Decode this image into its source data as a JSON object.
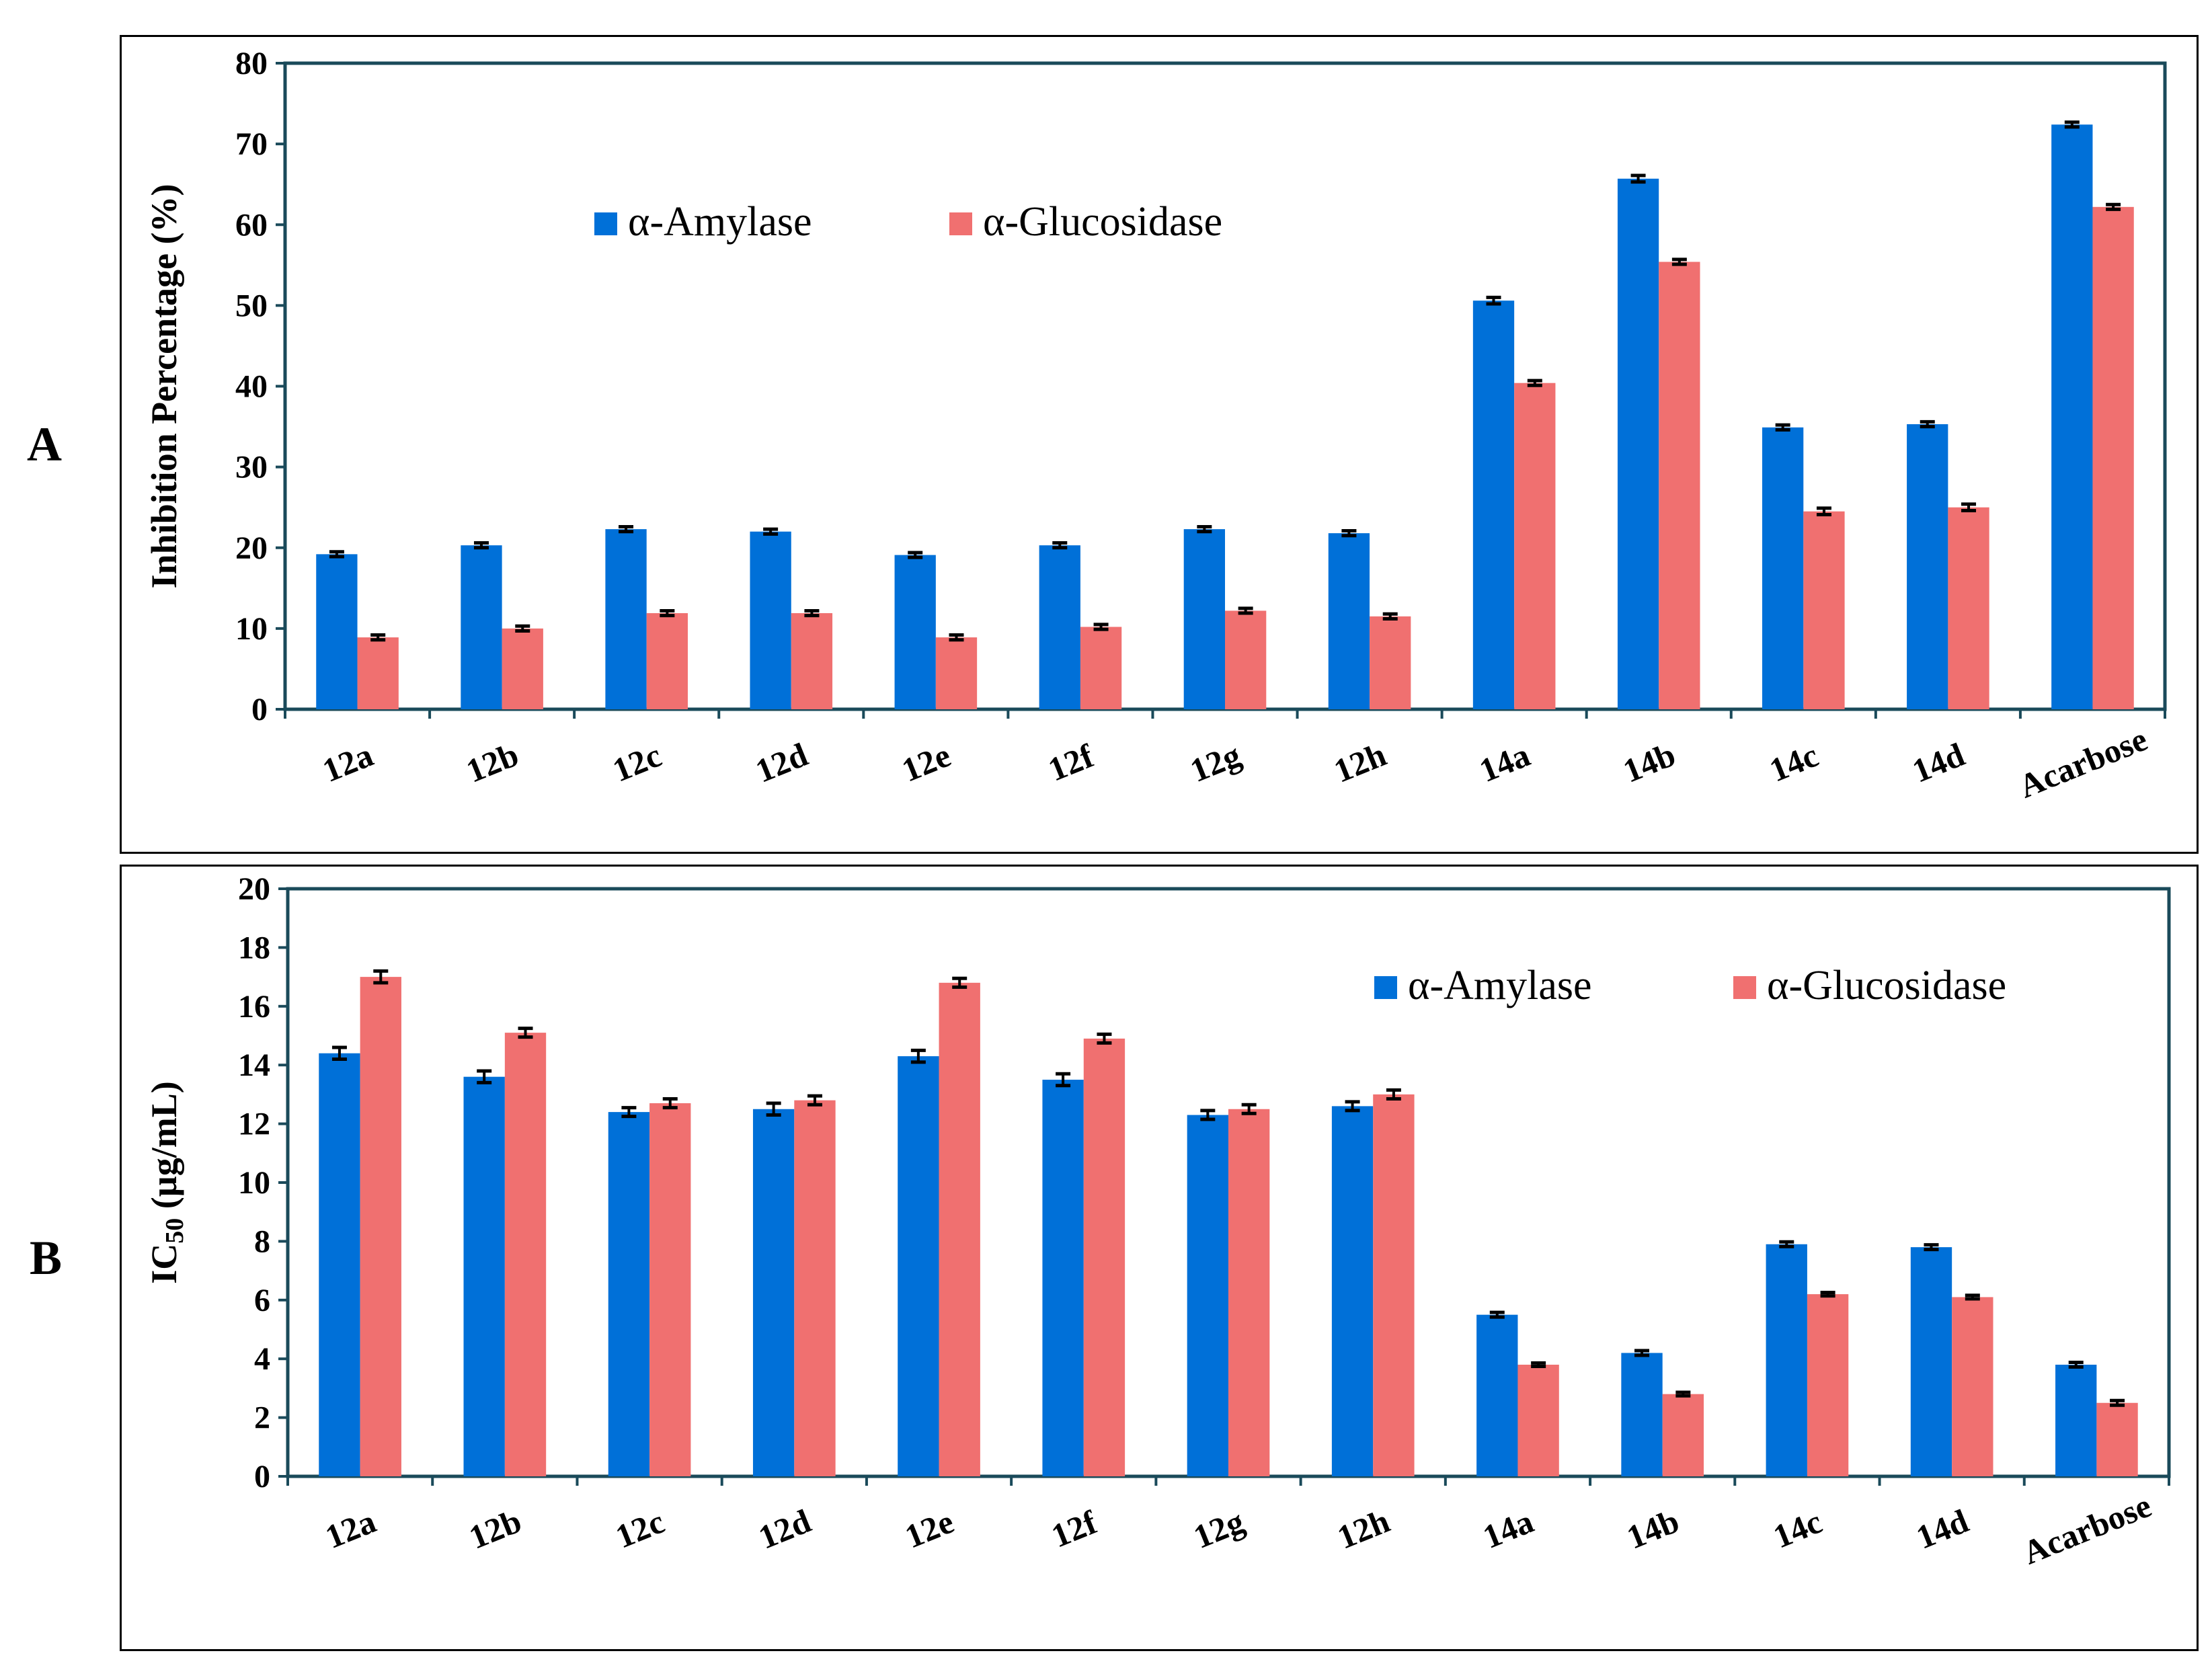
{
  "panels": [
    {
      "label": "A"
    },
    {
      "label": "B"
    }
  ],
  "chart_data": [
    {
      "type": "bar",
      "panel": "A",
      "title": "",
      "xlabel": "",
      "ylabel": "Inhibition Percentage (%)",
      "ylim": [
        0,
        80
      ],
      "yticks": [
        "0",
        "10",
        "20",
        "30",
        "40",
        "50",
        "60",
        "70",
        "80"
      ],
      "legend_position": "top-center",
      "categories": [
        "12a",
        "12b",
        "12c",
        "12d",
        "12e",
        "12f",
        "12g",
        "12h",
        "14a",
        "14b",
        "14c",
        "14d",
        "Acarbose"
      ],
      "series": [
        {
          "name": "α-Amylase",
          "color": "#0070d8",
          "values": [
            19.2,
            20.3,
            22.3,
            22.0,
            19.1,
            20.3,
            22.3,
            21.8,
            50.6,
            65.7,
            34.9,
            35.3,
            72.4
          ],
          "errors": [
            0.3,
            0.3,
            0.3,
            0.3,
            0.3,
            0.3,
            0.3,
            0.3,
            0.4,
            0.4,
            0.3,
            0.3,
            0.3
          ]
        },
        {
          "name": "α-Glucosidase",
          "color": "#f07070",
          "values": [
            8.9,
            10.0,
            11.9,
            11.9,
            8.9,
            10.2,
            12.2,
            11.5,
            40.4,
            55.4,
            24.5,
            25.0,
            62.2
          ],
          "errors": [
            0.3,
            0.3,
            0.3,
            0.3,
            0.3,
            0.3,
            0.3,
            0.3,
            0.3,
            0.3,
            0.4,
            0.4,
            0.3
          ]
        }
      ]
    },
    {
      "type": "bar",
      "panel": "B",
      "title": "",
      "xlabel": "",
      "ylabel": "IC50 (µg/mL)",
      "ylabel_main": "IC",
      "ylabel_sub": "50",
      "ylabel_rest": " (µg/mL)",
      "ylim": [
        0,
        20
      ],
      "yticks": [
        "0",
        "2",
        "4",
        "6",
        "8",
        "10",
        "12",
        "14",
        "16",
        "18",
        "20"
      ],
      "legend_position": "top-right",
      "categories": [
        "12a",
        "12b",
        "12c",
        "12d",
        "12e",
        "12f",
        "12g",
        "12h",
        "14a",
        "14b",
        "14c",
        "14d",
        "Acarbose"
      ],
      "series": [
        {
          "name": "α-Amylase",
          "color": "#0070d8",
          "values": [
            14.4,
            13.6,
            12.4,
            12.5,
            14.3,
            13.5,
            12.3,
            12.6,
            5.5,
            4.2,
            7.9,
            7.8,
            3.8
          ],
          "errors": [
            0.2,
            0.2,
            0.15,
            0.2,
            0.2,
            0.2,
            0.15,
            0.15,
            0.08,
            0.08,
            0.08,
            0.08,
            0.08
          ]
        },
        {
          "name": "α-Glucosidase",
          "color": "#f07070",
          "values": [
            17.0,
            15.1,
            12.7,
            12.8,
            16.8,
            14.9,
            12.5,
            13.0,
            3.8,
            2.8,
            6.2,
            6.1,
            2.5
          ],
          "errors": [
            0.2,
            0.15,
            0.15,
            0.15,
            0.15,
            0.15,
            0.15,
            0.15,
            0.06,
            0.06,
            0.06,
            0.06,
            0.08
          ]
        }
      ]
    }
  ]
}
